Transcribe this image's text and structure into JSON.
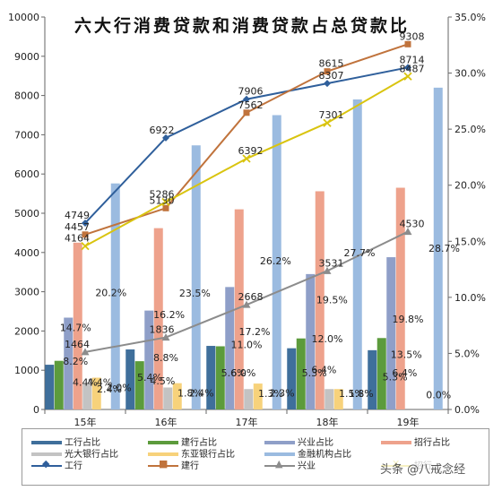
{
  "chart_data": {
    "type": "bar",
    "title": "六大行消费贷款和消费贷款占总贷款比",
    "categories": [
      "15年",
      "16年",
      "17年",
      "18年",
      "19年"
    ],
    "y_left": {
      "min": 0,
      "max": 10000,
      "ticks": [
        "0",
        "1000",
        "2000",
        "3000",
        "4000",
        "5000",
        "6000",
        "7000",
        "8000",
        "9000",
        "10000"
      ]
    },
    "y_right": {
      "min": 0,
      "max": 35,
      "ticks": [
        "0.0%",
        "5.0%",
        "10.0%",
        "15.0%",
        "20.0%",
        "25.0%",
        "30.0%",
        "35.0%"
      ]
    },
    "series": [
      {
        "name": "工行占比",
        "kind": "bar",
        "color": "#3f6f9b",
        "values": [
          1140,
          1530,
          1620,
          1560,
          1510
        ]
      },
      {
        "name": "建行占比",
        "kind": "bar",
        "color": "#5c9b3c",
        "values": [
          1240,
          1230,
          1610,
          1810,
          1820
        ]
      },
      {
        "name": "兴业占比",
        "kind": "bar",
        "color": "#8f9fc8",
        "values": [
          2340,
          2520,
          3120,
          3450,
          3880
        ]
      },
      {
        "name": "招行占比",
        "kind": "bar",
        "color": "#eea28c",
        "values": [
          4250,
          4620,
          5100,
          5560,
          5650
        ]
      },
      {
        "name": "光大银行占比",
        "kind": "bar",
        "color": "#c3c3c3",
        "values": [
          640,
          560,
          520,
          520,
          0
        ]
      },
      {
        "name": "东亚银行占比",
        "kind": "bar",
        "color": "#f7d27b",
        "values": [
          810,
          670,
          660,
          520,
          0
        ]
      },
      {
        "name": "金融机构占比",
        "kind": "bar",
        "color": "#9bbbe0",
        "values": [
          5760,
          6730,
          7500,
          7900,
          8200
        ]
      },
      {
        "name": "工行",
        "kind": "line",
        "color": "#2f5f9b",
        "marker": "diamond",
        "values": [
          4749,
          6922,
          7906,
          8307,
          8714
        ]
      },
      {
        "name": "建行",
        "kind": "line",
        "color": "#c0733c",
        "marker": "square",
        "values": [
          4457,
          5130,
          7562,
          8615,
          9308
        ]
      },
      {
        "name": "兴业",
        "kind": "line",
        "color": "#8c8c8c",
        "marker": "triangle",
        "values": [
          1464,
          1836,
          2668,
          3531,
          4530
        ]
      },
      {
        "name": "招行",
        "kind": "line",
        "color": "#d9c40f",
        "marker": "x",
        "values": [
          4164,
          5286,
          6392,
          7301,
          8487
        ]
      }
    ],
    "annotations": [
      {
        "text": "4.4%",
        "at_x": 0,
        "y": 610
      },
      {
        "text": "4.4%",
        "at_x": 0.18,
        "y": 610
      },
      {
        "text": "8.2%",
        "at_x": -0.12,
        "y": 1140
      },
      {
        "text": "14.7%",
        "at_x": -0.12,
        "y": 2000
      },
      {
        "text": "20.2%",
        "at_x": 0.32,
        "y": 2890
      },
      {
        "text": "2.4%",
        "at_x": 0.3,
        "y": 430
      },
      {
        "text": "2.0%",
        "at_x": 0.42,
        "y": 470
      },
      {
        "text": "5.4%",
        "at_x": 0.8,
        "y": 730
      },
      {
        "text": "4.5%",
        "at_x": 0.96,
        "y": 640
      },
      {
        "text": "8.8%",
        "at_x": 1.0,
        "y": 1230
      },
      {
        "text": "16.2%",
        "at_x": 1.04,
        "y": 2330
      },
      {
        "text": "23.5%",
        "at_x": 1.36,
        "y": 2880
      },
      {
        "text": "1.8%",
        "at_x": 1.3,
        "y": 330
      },
      {
        "text": "2.4%",
        "at_x": 1.44,
        "y": 330
      },
      {
        "text": "5.6%",
        "at_x": 1.84,
        "y": 850
      },
      {
        "text": "6.0%",
        "at_x": 1.96,
        "y": 850
      },
      {
        "text": "11.0%",
        "at_x": 2.0,
        "y": 1560
      },
      {
        "text": "17.2%",
        "at_x": 2.1,
        "y": 1900
      },
      {
        "text": "26.2%",
        "at_x": 2.36,
        "y": 3700
      },
      {
        "text": "1.3%",
        "at_x": 2.3,
        "y": 320
      },
      {
        "text": "2.3%",
        "at_x": 2.44,
        "y": 330
      },
      {
        "text": "5.3%",
        "at_x": 2.84,
        "y": 840
      },
      {
        "text": "6.4%",
        "at_x": 2.96,
        "y": 930
      },
      {
        "text": "12.0%",
        "at_x": 3.0,
        "y": 1710
      },
      {
        "text": "19.5%",
        "at_x": 3.06,
        "y": 2710
      },
      {
        "text": "27.7%",
        "at_x": 3.4,
        "y": 3900
      },
      {
        "text": "1.5%",
        "at_x": 3.3,
        "y": 320
      },
      {
        "text": "1.8%",
        "at_x": 3.42,
        "y": 320
      },
      {
        "text": "5.3%",
        "at_x": 3.84,
        "y": 740
      },
      {
        "text": "6.4%",
        "at_x": 3.96,
        "y": 850
      },
      {
        "text": "13.5%",
        "at_x": 3.98,
        "y": 1310
      },
      {
        "text": "19.8%",
        "at_x": 4.0,
        "y": 2220
      },
      {
        "text": "28.7%",
        "at_x": 4.45,
        "y": 4020
      },
      {
        "text": "0.0%",
        "at_x": 4.38,
        "y": 280
      }
    ],
    "line_labels": [
      {
        "text": "4749",
        "at_x": -0.1,
        "y": 4749
      },
      {
        "text": "4457",
        "at_x": -0.1,
        "y": 4457
      },
      {
        "text": "4164",
        "at_x": -0.1,
        "y": 4164
      },
      {
        "text": "1464",
        "at_x": -0.1,
        "y": 1464
      },
      {
        "text": "6922",
        "at_x": -0.05,
        "y": 6922
      },
      {
        "text": "5286",
        "at_x": -0.05,
        "y": 5286
      },
      {
        "text": "5130",
        "at_x": -0.05,
        "y": 5130
      },
      {
        "text": "1836",
        "at_x": -0.05,
        "y": 1836
      },
      {
        "text": "7906",
        "at_x": 0.05,
        "y": 7906
      },
      {
        "text": "7562",
        "at_x": 0.05,
        "y": 7562
      },
      {
        "text": "6392",
        "at_x": 0.05,
        "y": 6392
      },
      {
        "text": "2668",
        "at_x": 0.05,
        "y": 2668
      },
      {
        "text": "8615",
        "at_x": 0.05,
        "y": 8615
      },
      {
        "text": "8307",
        "at_x": 0.05,
        "y": 8307
      },
      {
        "text": "7301",
        "at_x": 0.05,
        "y": 7301
      },
      {
        "text": "3531",
        "at_x": 0.05,
        "y": 3531
      },
      {
        "text": "9308",
        "at_x": 0.05,
        "y": 9308
      },
      {
        "text": "8714",
        "at_x": 0.05,
        "y": 8714
      },
      {
        "text": "8487",
        "at_x": 0.05,
        "y": 8487
      },
      {
        "text": "4530",
        "at_x": 0.05,
        "y": 4530
      }
    ]
  },
  "watermark": "头条 @八戒念经"
}
